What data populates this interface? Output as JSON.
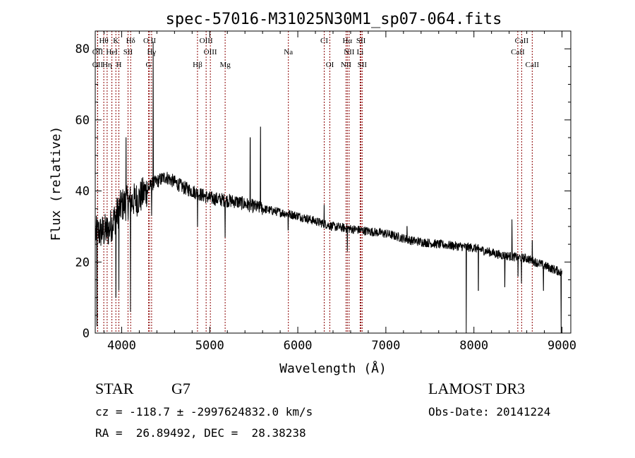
{
  "chart_data": {
    "type": "line",
    "title": "spec-57016-M31025N30M1_sp07-064.fits",
    "xlabel": "Wavelength (Å)",
    "ylabel": "Flux (relative)",
    "xlim": [
      3700,
      9100
    ],
    "ylim": [
      0,
      85
    ],
    "xticks": [
      4000,
      5000,
      6000,
      7000,
      8000,
      9000
    ],
    "yticks": [
      0,
      20,
      40,
      60,
      80
    ],
    "x_minor_step": 200,
    "y_minor_step": 5,
    "grid": false,
    "line_color": "#000000",
    "marker_color": "#8b0000",
    "spectrum": {
      "continuum": [
        [
          3700,
          28
        ],
        [
          3850,
          29
        ],
        [
          4000,
          36
        ],
        [
          4200,
          38
        ],
        [
          4350,
          42
        ],
        [
          4500,
          44
        ],
        [
          4700,
          41
        ],
        [
          5000,
          38
        ],
        [
          5300,
          37
        ],
        [
          5600,
          35
        ],
        [
          6000,
          33
        ],
        [
          6400,
          30
        ],
        [
          6700,
          29
        ],
        [
          7000,
          28
        ],
        [
          7300,
          26
        ],
        [
          7600,
          25
        ],
        [
          8000,
          24
        ],
        [
          8300,
          22
        ],
        [
          8600,
          21
        ],
        [
          8900,
          18
        ],
        [
          9000,
          17
        ]
      ],
      "features": [
        {
          "x": 3720,
          "y": 2
        },
        {
          "x": 3934,
          "y": 10
        },
        {
          "x": 3968,
          "y": 12
        },
        {
          "x": 4100,
          "y": 6
        },
        {
          "x": 4050,
          "y": 55
        },
        {
          "x": 4340,
          "y": 33
        },
        {
          "x": 4358,
          "y": 82
        },
        {
          "x": 4861,
          "y": 30
        },
        {
          "x": 5175,
          "y": 27
        },
        {
          "x": 5460,
          "y": 55
        },
        {
          "x": 5577,
          "y": 58
        },
        {
          "x": 5890,
          "y": 29
        },
        {
          "x": 6300,
          "y": 36
        },
        {
          "x": 6563,
          "y": 23
        },
        {
          "x": 7240,
          "y": 30
        },
        {
          "x": 7913,
          "y": 0
        },
        {
          "x": 8050,
          "y": 12
        },
        {
          "x": 8350,
          "y": 13
        },
        {
          "x": 8432,
          "y": 32
        },
        {
          "x": 8500,
          "y": 16
        },
        {
          "x": 8540,
          "y": 14
        },
        {
          "x": 8662,
          "y": 26
        },
        {
          "x": 8790,
          "y": 12
        },
        {
          "x": 8990,
          "y": 0
        }
      ]
    },
    "line_markers": [
      {
        "label": "Hθ",
        "x": 3797,
        "row": 1
      },
      {
        "label": "K",
        "x": 3934,
        "row": 1
      },
      {
        "label": "Hδ",
        "x": 4102,
        "row": 1
      },
      {
        "label": "O II",
        "x": 4317,
        "row": 1
      },
      {
        "label": "OIII",
        "x": 4959,
        "row": 1
      },
      {
        "label": "CI",
        "x": 6300,
        "row": 1
      },
      {
        "label": "Hα",
        "x": 6563,
        "row": 1
      },
      {
        "label": "SII",
        "x": 6717,
        "row": 1
      },
      {
        "label": "CaII",
        "x": 8542,
        "row": 1
      },
      {
        "label": "OII",
        "x": 3727,
        "row": 2
      },
      {
        "label": "HeI",
        "x": 3889,
        "row": 2
      },
      {
        "label": "SII",
        "x": 4072,
        "row": 2
      },
      {
        "label": "Hγ",
        "x": 4340,
        "row": 2
      },
      {
        "label": "OIII",
        "x": 5007,
        "row": 2
      },
      {
        "label": "Na",
        "x": 5893,
        "row": 2
      },
      {
        "label": "NII",
        "x": 6583,
        "row": 2
      },
      {
        "label": "Li",
        "x": 6708,
        "row": 2
      },
      {
        "label": "CaII",
        "x": 8498,
        "row": 2
      },
      {
        "label": "OII",
        "x": 3727,
        "row": 3
      },
      {
        "label": "Hη",
        "x": 3835,
        "row": 3
      },
      {
        "label": "H",
        "x": 3968,
        "row": 3
      },
      {
        "label": "G",
        "x": 4305,
        "row": 3
      },
      {
        "label": "Hβ",
        "x": 4861,
        "row": 3
      },
      {
        "label": "Mg",
        "x": 5175,
        "row": 3
      },
      {
        "label": "OI",
        "x": 6364,
        "row": 3
      },
      {
        "label": "NII",
        "x": 6548,
        "row": 3
      },
      {
        "label": "SII",
        "x": 6731,
        "row": 3
      },
      {
        "label": "CaII",
        "x": 8662,
        "row": 3
      }
    ]
  },
  "footer": {
    "object_class": "STAR",
    "subclass": "G7",
    "survey": "LAMOST DR3",
    "cz_line": "cz = -118.7 ± -2997624832.0 km/s",
    "obs_date": "Obs-Date: 20141224",
    "coords": "RA =  26.89492, DEC =  28.38238"
  }
}
